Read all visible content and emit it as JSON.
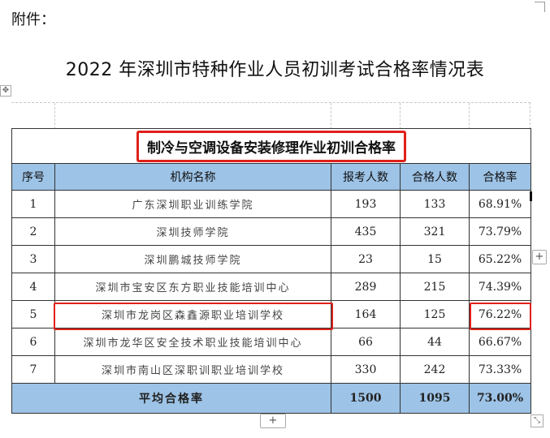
{
  "document": {
    "attachment_label": "附件：",
    "title": "2022 年深圳市特种作业人员初训考试合格率情况表"
  },
  "table": {
    "subtitle": "制冷与空调设备安装修理作业初训合格率",
    "headers": {
      "seq": "序号",
      "org": "机构名称",
      "applicants": "报考人数",
      "passed": "合格人数",
      "rate": "合格率"
    },
    "rows": [
      {
        "seq": "1",
        "org": "广东深圳职业训练学院",
        "applicants": "193",
        "passed": "133",
        "rate": "68.91%"
      },
      {
        "seq": "2",
        "org": "深圳技师学院",
        "applicants": "435",
        "passed": "321",
        "rate": "73.79%"
      },
      {
        "seq": "3",
        "org": "深圳鹏城技师学院",
        "applicants": "23",
        "passed": "15",
        "rate": "65.22%"
      },
      {
        "seq": "4",
        "org": "深圳市宝安区东方职业技能培训中心",
        "applicants": "289",
        "passed": "215",
        "rate": "74.39%"
      },
      {
        "seq": "5",
        "org": "深圳市龙岗区森鑫源职业培训学校",
        "applicants": "164",
        "passed": "125",
        "rate": "76.22%"
      },
      {
        "seq": "6",
        "org": "深圳市龙华区安全技术职业技能培训中心",
        "applicants": "66",
        "passed": "44",
        "rate": "66.67%"
      },
      {
        "seq": "7",
        "org": "深圳市南山区深职训职业培训学校",
        "applicants": "330",
        "passed": "242",
        "rate": "73.33%"
      }
    ],
    "footer": {
      "label": "平均合格率",
      "applicants": "1500",
      "passed": "1095",
      "rate": "73.00%"
    }
  },
  "controls": {
    "add_row_symbol": "+",
    "add_column_symbol": "+",
    "move_symbol": "✥",
    "resize_symbol": "⤡"
  },
  "colors": {
    "header_fill": "#9dc3e6",
    "highlight": "#e0201a"
  }
}
